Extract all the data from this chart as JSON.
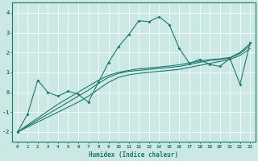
{
  "xlabel": "Humidex (Indice chaleur)",
  "bg_color": "#cce8e4",
  "line_color": "#1a7a6e",
  "grid_color": "#ffffff",
  "ylim": [
    -2.5,
    4.5
  ],
  "xlim": [
    -0.5,
    23.5
  ],
  "yticks": [
    -2,
    -1,
    0,
    1,
    2,
    3,
    4
  ],
  "xticks": [
    0,
    1,
    2,
    3,
    4,
    5,
    6,
    7,
    8,
    9,
    10,
    11,
    12,
    13,
    14,
    15,
    16,
    17,
    18,
    19,
    20,
    21,
    22,
    23
  ],
  "line_wiggly": [
    -2.0,
    -1.1,
    0.6,
    0.0,
    -0.2,
    0.05,
    -0.1,
    -0.5,
    0.5,
    1.5,
    2.3,
    2.9,
    3.6,
    3.55,
    3.8,
    3.4,
    2.2,
    1.45,
    1.65,
    1.4,
    1.3,
    1.7,
    0.4,
    2.5
  ],
  "line_straight1": [
    -2.0,
    -1.75,
    -1.5,
    -1.25,
    -1.0,
    -0.75,
    -0.5,
    -0.2,
    0.15,
    0.5,
    0.75,
    0.88,
    0.95,
    1.0,
    1.05,
    1.1,
    1.15,
    1.25,
    1.35,
    1.45,
    1.55,
    1.65,
    1.85,
    2.2
  ],
  "line_straight2": [
    -2.0,
    -1.7,
    -1.4,
    -1.1,
    -0.8,
    -0.5,
    -0.2,
    0.1,
    0.45,
    0.75,
    0.95,
    1.05,
    1.1,
    1.15,
    1.2,
    1.25,
    1.3,
    1.4,
    1.5,
    1.6,
    1.65,
    1.72,
    1.95,
    2.35
  ],
  "line_straight3": [
    -2.0,
    -1.65,
    -1.3,
    -0.95,
    -0.6,
    -0.3,
    0.0,
    0.3,
    0.6,
    0.85,
    1.0,
    1.1,
    1.18,
    1.22,
    1.27,
    1.32,
    1.38,
    1.48,
    1.56,
    1.64,
    1.68,
    1.75,
    2.0,
    2.45
  ]
}
